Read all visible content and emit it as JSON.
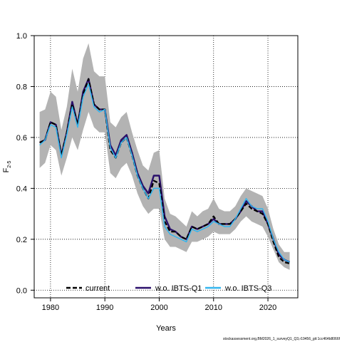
{
  "chart_data": {
    "type": "line",
    "xlabel": "Years",
    "ylabel_main": "F",
    "ylabel_sub": "2-5",
    "xlim": [
      1977,
      2025.5
    ],
    "ylim": [
      -0.03,
      1.0
    ],
    "xticks": [
      1980,
      1990,
      2000,
      2010,
      2020
    ],
    "yticks": [
      0.0,
      0.2,
      0.4,
      0.6,
      0.8,
      1.0
    ],
    "ytick_labels": [
      "0.0",
      "0.2",
      "0.4",
      "0.6",
      "0.8",
      "1.0"
    ],
    "grid": true,
    "legend_position": "bottom",
    "x": [
      1978,
      1979,
      1980,
      1981,
      1982,
      1983,
      1984,
      1985,
      1986,
      1987,
      1988,
      1989,
      1990,
      1991,
      1992,
      1993,
      1994,
      1995,
      1996,
      1997,
      1998,
      1999,
      2000,
      2001,
      2002,
      2003,
      2004,
      2005,
      2006,
      2007,
      2008,
      2009,
      2010,
      2011,
      2012,
      2013,
      2014,
      2015,
      2016,
      2017,
      2018,
      2019,
      2020,
      2021,
      2022,
      2023,
      2024
    ],
    "confidence_band": {
      "lower": [
        0.48,
        0.5,
        0.57,
        0.55,
        0.45,
        0.52,
        0.6,
        0.55,
        0.63,
        0.7,
        0.64,
        0.62,
        0.62,
        0.46,
        0.44,
        0.48,
        0.5,
        0.45,
        0.38,
        0.33,
        0.3,
        0.32,
        0.32,
        0.2,
        0.17,
        0.17,
        0.16,
        0.15,
        0.19,
        0.19,
        0.2,
        0.21,
        0.23,
        0.22,
        0.22,
        0.22,
        0.24,
        0.27,
        0.29,
        0.27,
        0.26,
        0.25,
        0.21,
        0.16,
        0.11,
        0.09,
        0.08
      ],
      "upper": [
        0.7,
        0.71,
        0.78,
        0.76,
        0.63,
        0.72,
        0.87,
        0.78,
        0.91,
        0.97,
        0.86,
        0.84,
        0.84,
        0.66,
        0.64,
        0.68,
        0.7,
        0.62,
        0.55,
        0.49,
        0.47,
        0.54,
        0.55,
        0.36,
        0.3,
        0.29,
        0.27,
        0.25,
        0.31,
        0.29,
        0.31,
        0.32,
        0.36,
        0.32,
        0.31,
        0.31,
        0.33,
        0.37,
        0.4,
        0.39,
        0.38,
        0.37,
        0.32,
        0.24,
        0.18,
        0.15,
        0.15
      ]
    },
    "series": [
      {
        "name": "current",
        "color": "#000000",
        "dash": "dashed",
        "values": [
          0.58,
          0.59,
          0.66,
          0.65,
          0.53,
          0.62,
          0.73,
          0.65,
          0.77,
          0.83,
          0.73,
          0.71,
          0.71,
          0.55,
          0.52,
          0.58,
          0.6,
          0.53,
          0.45,
          0.4,
          0.36,
          0.43,
          0.42,
          0.27,
          0.23,
          0.23,
          0.21,
          0.2,
          0.25,
          0.24,
          0.25,
          0.26,
          0.29,
          0.26,
          0.26,
          0.26,
          0.28,
          0.31,
          0.34,
          0.32,
          0.31,
          0.3,
          0.26,
          0.19,
          0.13,
          0.11,
          0.105
        ]
      },
      {
        "name": "w.o. IBTS-Q1",
        "color": "#2a0f6b",
        "dash": "solid",
        "values": [
          0.58,
          0.59,
          0.66,
          0.65,
          0.53,
          0.62,
          0.74,
          0.65,
          0.78,
          0.83,
          0.73,
          0.71,
          0.71,
          0.57,
          0.53,
          0.59,
          0.61,
          0.54,
          0.46,
          0.41,
          0.38,
          0.45,
          0.45,
          0.29,
          0.24,
          0.23,
          0.21,
          0.2,
          0.25,
          0.24,
          0.25,
          0.26,
          0.28,
          0.26,
          0.26,
          0.26,
          0.28,
          0.31,
          0.35,
          0.33,
          0.31,
          0.31,
          0.26,
          0.2,
          0.14,
          0.12,
          0.11
        ]
      },
      {
        "name": "w.o. IBTS-Q3",
        "color": "#33b5ee",
        "dash": "solid",
        "values": [
          0.57,
          0.59,
          0.65,
          0.64,
          0.52,
          0.61,
          0.72,
          0.64,
          0.76,
          0.81,
          0.72,
          0.7,
          0.71,
          0.56,
          0.52,
          0.58,
          0.6,
          0.53,
          0.45,
          0.4,
          0.36,
          0.4,
          0.4,
          0.25,
          0.22,
          0.21,
          0.2,
          0.19,
          0.24,
          0.23,
          0.24,
          0.25,
          0.27,
          0.26,
          0.25,
          0.25,
          0.28,
          0.32,
          0.36,
          0.33,
          0.32,
          0.32,
          0.27,
          0.2,
          0.15,
          0.12,
          0.11
        ]
      }
    ]
  },
  "footer": "stockassessment.org,BM2026_1_surveyQ1_Q3,r19456_git:1cc464b8066f"
}
